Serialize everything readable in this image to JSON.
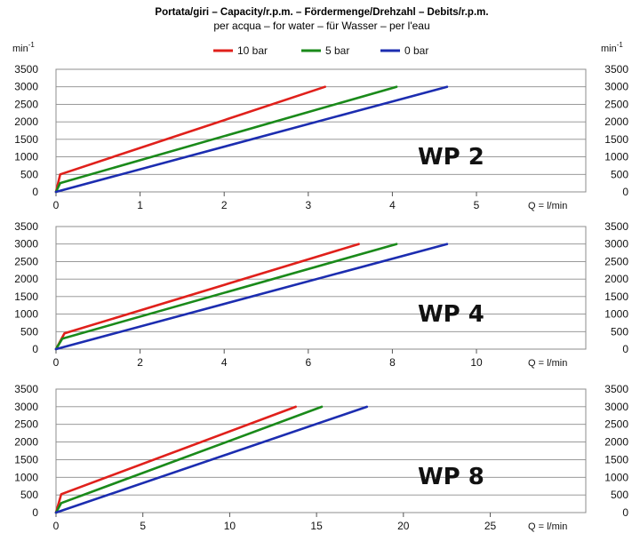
{
  "header": {
    "title": "Portata/giri – Capacity/r.p.m. – Fördermenge/Drehzahl – Debits/r.p.m.",
    "subtitle": "per acqua – for water – für Wasser – per l'eau"
  },
  "axis_unit": {
    "base": "min",
    "exp": "-1"
  },
  "legend": [
    {
      "label": "10 bar",
      "color": "#e0201b"
    },
    {
      "label": "5 bar",
      "color": "#1a8a1a"
    },
    {
      "label": "0 bar",
      "color": "#1c2db0"
    }
  ],
  "chart_data": [
    {
      "type": "line",
      "model": "WP 2",
      "xlabel": "Q = l/min",
      "ylabel": "min-1",
      "xlim": [
        0,
        6.3
      ],
      "ylim": [
        0,
        3500
      ],
      "xticks": [
        0,
        1,
        2,
        3,
        4,
        5
      ],
      "yticks": [
        0,
        500,
        1000,
        1500,
        2000,
        2500,
        3000,
        3500
      ],
      "series": [
        {
          "name": "10 bar",
          "x": [
            0,
            0.05,
            3.2
          ],
          "y": [
            0,
            500,
            3000
          ]
        },
        {
          "name": "5 bar",
          "x": [
            0,
            0.05,
            4.05
          ],
          "y": [
            0,
            250,
            3000
          ]
        },
        {
          "name": "0 bar",
          "x": [
            0,
            4.65
          ],
          "y": [
            0,
            3000
          ]
        }
      ]
    },
    {
      "type": "line",
      "model": "WP 4",
      "xlabel": "Q = l/min",
      "ylabel": "min-1",
      "xlim": [
        0,
        12.6
      ],
      "ylim": [
        0,
        3500
      ],
      "xticks": [
        0,
        2,
        4,
        6,
        8,
        10
      ],
      "yticks": [
        0,
        500,
        1000,
        1500,
        2000,
        2500,
        3000,
        3500
      ],
      "series": [
        {
          "name": "10 bar",
          "x": [
            0,
            0.2,
            7.2
          ],
          "y": [
            0,
            450,
            3000
          ]
        },
        {
          "name": "5 bar",
          "x": [
            0,
            0.15,
            8.1
          ],
          "y": [
            0,
            300,
            3000
          ]
        },
        {
          "name": "0 bar",
          "x": [
            0,
            9.3
          ],
          "y": [
            0,
            3000
          ]
        }
      ]
    },
    {
      "type": "line",
      "model": "WP 8",
      "xlabel": "Q = l/min",
      "ylabel": "min-1",
      "xlim": [
        0,
        30.5
      ],
      "ylim": [
        0,
        3500
      ],
      "xticks": [
        0,
        5,
        10,
        15,
        20,
        25
      ],
      "yticks": [
        0,
        500,
        1000,
        1500,
        2000,
        2500,
        3000,
        3500
      ],
      "series": [
        {
          "name": "10 bar",
          "x": [
            0,
            0.3,
            13.8
          ],
          "y": [
            0,
            520,
            3000
          ]
        },
        {
          "name": "5 bar",
          "x": [
            0,
            0.3,
            15.3
          ],
          "y": [
            0,
            270,
            3000
          ]
        },
        {
          "name": "0 bar",
          "x": [
            0,
            17.9
          ],
          "y": [
            0,
            3000
          ]
        }
      ]
    }
  ]
}
